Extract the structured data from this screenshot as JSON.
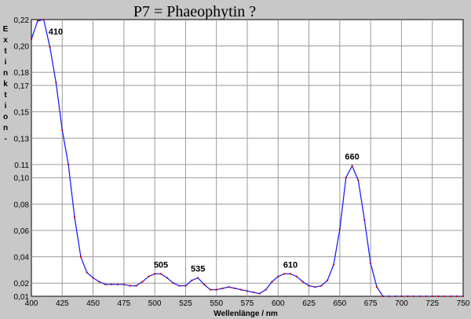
{
  "chart_data": {
    "type": "line",
    "title": "P7 = Phaeophytin ?",
    "xlabel": "Wellenlänge / nm",
    "ylabel": "Extinktion -",
    "xlim": [
      400,
      750
    ],
    "ylim": [
      0.01,
      0.22
    ],
    "x_ticks": [
      400,
      425,
      450,
      475,
      500,
      525,
      550,
      575,
      600,
      625,
      650,
      675,
      700,
      725,
      750
    ],
    "y_ticks": [
      0.01,
      0.02,
      0.04,
      0.06,
      0.08,
      0.1,
      0.11,
      0.13,
      0.15,
      0.17,
      0.18,
      0.2,
      0.22
    ],
    "y_tick_labels": [
      "0,01",
      "0,02",
      "0,04",
      "0,06",
      "0,08",
      "0,10",
      "0.11",
      "0,13",
      "0,15",
      "0,17",
      "0,18",
      "0,20",
      "0,22"
    ],
    "grid": true,
    "line_color": "#2020ff",
    "marker_color": "#cc0000",
    "series": [
      {
        "x": [
          400,
          405,
          410,
          415,
          420,
          425,
          430,
          435,
          440,
          445,
          450,
          455,
          460,
          465,
          470,
          475,
          480,
          485,
          490,
          495,
          500,
          505,
          510,
          515,
          520,
          525,
          530,
          535,
          540,
          545,
          550,
          555,
          560,
          565,
          570,
          575,
          580,
          585,
          590,
          595,
          600,
          605,
          610,
          615,
          620,
          625,
          630,
          635,
          640,
          645,
          650,
          655,
          660,
          665,
          670,
          675,
          680,
          685,
          690,
          695,
          700,
          705,
          710,
          715,
          720,
          725,
          730,
          735,
          740,
          745,
          750
        ],
        "y": [
          0.205,
          0.219,
          0.22,
          0.199,
          0.172,
          0.136,
          0.11,
          0.07,
          0.04,
          0.028,
          0.024,
          0.021,
          0.019,
          0.019,
          0.019,
          0.019,
          0.018,
          0.018,
          0.021,
          0.025,
          0.027,
          0.027,
          0.024,
          0.02,
          0.018,
          0.018,
          0.022,
          0.024,
          0.019,
          0.015,
          0.015,
          0.016,
          0.017,
          0.016,
          0.015,
          0.014,
          0.013,
          0.012,
          0.015,
          0.021,
          0.025,
          0.027,
          0.027,
          0.025,
          0.021,
          0.018,
          0.017,
          0.018,
          0.022,
          0.034,
          0.061,
          0.1,
          0.109,
          0.098,
          0.068,
          0.035,
          0.017,
          0.01,
          0.006,
          0.005,
          0.005,
          0.005,
          0.005,
          0.004,
          0.004,
          0.003,
          0.003,
          0.003,
          0.003,
          0.002,
          0.002
        ]
      }
    ],
    "peak_labels": [
      {
        "text": "410",
        "x": 410,
        "y": 0.22
      },
      {
        "text": "505",
        "x": 505,
        "y": 0.027
      },
      {
        "text": "535",
        "x": 535,
        "y": 0.024
      },
      {
        "text": "610",
        "x": 610,
        "y": 0.027
      },
      {
        "text": "660",
        "x": 660,
        "y": 0.109
      }
    ]
  }
}
